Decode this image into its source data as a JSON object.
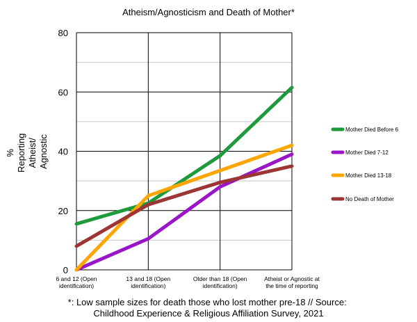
{
  "chart_data": {
    "type": "line",
    "title": "Atheism/Agnosticism and Death of Mother*",
    "ylabel": [
      "%",
      "Reporting",
      "Atheist/",
      "Agnostic"
    ],
    "xlabel": "",
    "categories": [
      [
        "6 and 12 (Open",
        "identification)"
      ],
      [
        "13 and 18 (Open",
        "identification)"
      ],
      [
        "Older than 18 (Open",
        "identification)"
      ],
      [
        "Atheist or Agnostic at",
        "the time of reporting"
      ]
    ],
    "ylim": [
      0,
      80
    ],
    "yticks": [
      0,
      20,
      40,
      60,
      80
    ],
    "grid": true,
    "legend_position": "right",
    "series": [
      {
        "name": "Mother Died Before 6",
        "color": "#1e9a3c",
        "values": [
          15.5,
          22.5,
          38.5,
          61.5
        ]
      },
      {
        "name": "Mother Died 7-12",
        "color": "#9a14c8",
        "values": [
          0,
          10.5,
          28,
          39
        ]
      },
      {
        "name": "Mother Died 13-18",
        "color": "#ffa500",
        "values": [
          0,
          25,
          33.5,
          42
        ]
      },
      {
        "name": "No Death of Mother",
        "color": "#9e3535",
        "values": [
          8,
          22,
          29.5,
          35
        ]
      }
    ],
    "footnote": [
      "*: Low sample sizes for death those who lost mother pre-18 // Source:",
      "Childhood Experience & Religious Affiliation Survey, 2021"
    ]
  }
}
